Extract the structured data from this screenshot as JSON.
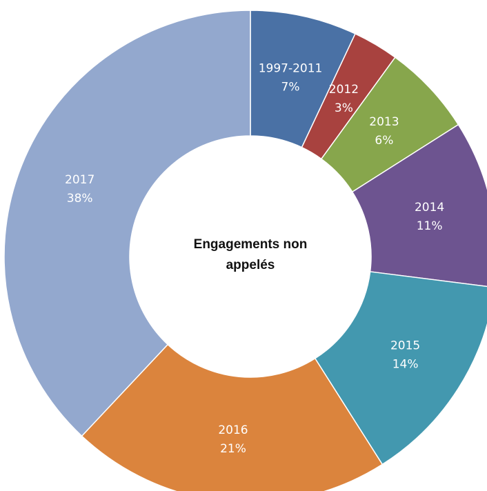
{
  "chart_data": {
    "type": "donut",
    "title": "Engagements non appelés",
    "categories": [
      "1997-2011",
      "2012",
      "2013",
      "2014",
      "2015",
      "2016",
      "2017"
    ],
    "values": [
      7,
      3,
      6,
      11,
      14,
      21,
      38
    ],
    "value_labels": [
      "7%",
      "3%",
      "6%",
      "11%",
      "14%",
      "21%",
      "38%"
    ],
    "colors": [
      "#4a71a5",
      "#a8423f",
      "#87a64c",
      "#6d5490",
      "#4398af",
      "#db843d",
      "#93a8ce"
    ]
  }
}
